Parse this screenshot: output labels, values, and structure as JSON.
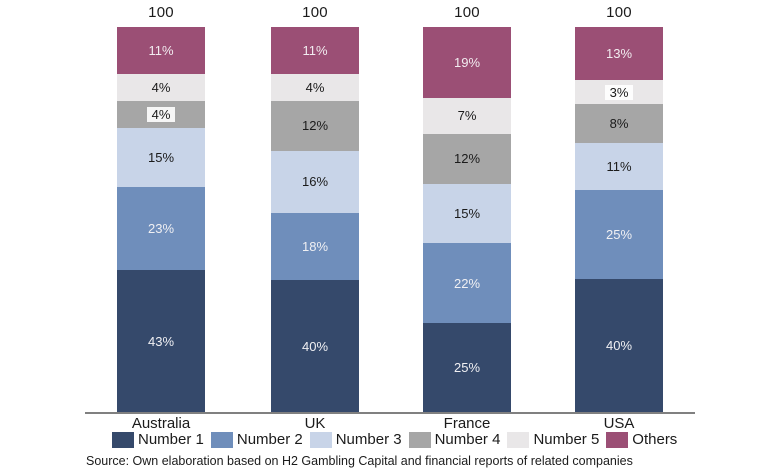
{
  "chart_data": {
    "type": "bar",
    "subtype": "stacked-100-percent",
    "categories": [
      "Australia",
      "UK",
      "France",
      "USA"
    ],
    "series": [
      {
        "name": "Number 1",
        "color": "#35496B",
        "label_color": "#F0F0F3",
        "values": [
          43,
          40,
          25,
          40
        ]
      },
      {
        "name": "Number 2",
        "color": "#6F8EBB",
        "label_color": "#F0F0F3",
        "values": [
          23,
          18,
          22,
          25
        ]
      },
      {
        "name": "Number 3",
        "color": "#C8D4E8",
        "label_color": "#1B1B1B",
        "values": [
          15,
          16,
          15,
          11
        ]
      },
      {
        "name": "Number 4",
        "color": "#A6A6A6",
        "label_color": "#1B1B1B",
        "values": [
          4,
          12,
          12,
          8
        ]
      },
      {
        "name": "Number 5",
        "color": "#E9E7E8",
        "label_color": "#1B1B1B",
        "values": [
          4,
          4,
          7,
          3
        ]
      },
      {
        "name": "Others",
        "color": "#9B4F75",
        "label_color": "#F2ECF0",
        "values": [
          11,
          11,
          19,
          13
        ]
      }
    ],
    "stack_order_top_to_bottom": [
      "Others",
      "Number 5",
      "Number 4",
      "Number 3",
      "Number 2",
      "Number 1"
    ],
    "total_labels": [
      "100",
      "100",
      "100",
      "100"
    ],
    "value_suffix": "%",
    "boxed_value_labels": [
      {
        "category": "Australia",
        "series": "Number 4"
      },
      {
        "category": "USA",
        "series": "Number 5"
      }
    ],
    "legend_position": "bottom",
    "grid": false,
    "axis_line_color": "#808080",
    "ylim": [
      0,
      100
    ]
  },
  "source_note": "Source: Own elaboration based on H2 Gambling Capital and financial reports of related companies"
}
